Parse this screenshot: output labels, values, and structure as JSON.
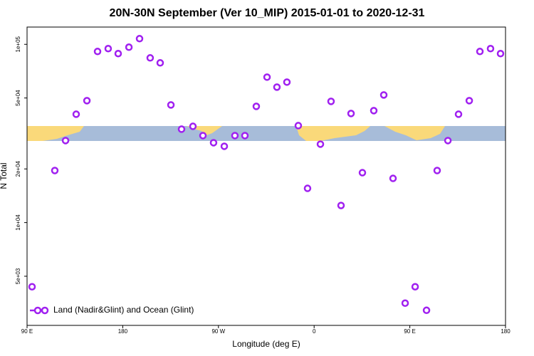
{
  "chart_data": {
    "type": "scatter",
    "title": "20N-30N September (Ver 10_MIP)   2015-01-01 to 2020-12-31",
    "x_label": "Longitude (deg E)",
    "y_label": "N Total",
    "log_y": true,
    "legend": "bottom-left",
    "xlim": [
      90,
      540
    ],
    "ylim": [
      2650,
      125000
    ],
    "xticks": [
      {
        "value": 90,
        "label": "90 E"
      },
      180,
      {
        "value": 270,
        "label": "90 W"
      },
      {
        "value": 360,
        "label": "0"
      },
      {
        "value": 450,
        "label": "90 E"
      },
      {
        "value": 540,
        "label": "180"
      }
    ],
    "yticks": [
      {
        "value": 100000,
        "label": "1e+05"
      },
      {
        "value": 50000,
        "label": "5e+04"
      },
      {
        "value": 20000,
        "label": "2e+04"
      },
      {
        "value": 10000,
        "label": "1e+04"
      },
      {
        "value": 5000,
        "label": "5e+03"
      }
    ],
    "series": [
      {
        "name": "Land (Nadir&Glint) and Ocean (Glint)",
        "color": "#a020f0",
        "x": [
          94.7,
          116.1,
          126.2,
          136.2,
          146.3,
          156.3,
          166.3,
          175.7,
          185.8,
          195.8,
          205.8,
          215.2,
          225.3,
          235.3,
          246.0,
          255.4,
          265.4,
          275.5,
          285.5,
          294.9,
          305.6,
          315.7,
          325.0,
          334.4,
          345.1,
          353.8,
          365.9,
          375.9,
          385.3,
          394.7,
          405.4,
          416.1,
          425.5,
          434.2,
          445.6,
          455.0,
          465.7,
          475.7,
          485.8,
          495.8,
          505.9,
          515.9,
          525.9,
          535.3
        ],
        "values": [
          4365,
          19590,
          28840,
          40550,
          48300,
          91200,
          94620,
          88720,
          96380,
          107600,
          83950,
          78700,
          45710,
          33420,
          34670,
          30760,
          28050,
          26790,
          30760,
          30760,
          44870,
          65460,
          57540,
          61380,
          34990,
          15560,
          27540,
          47860,
          12470,
          40930,
          19050,
          42460,
          52000,
          17700,
          3532,
          4365,
          3221,
          19590,
          28840,
          40550,
          48300,
          91200,
          94620,
          88720
        ]
      }
    ]
  }
}
